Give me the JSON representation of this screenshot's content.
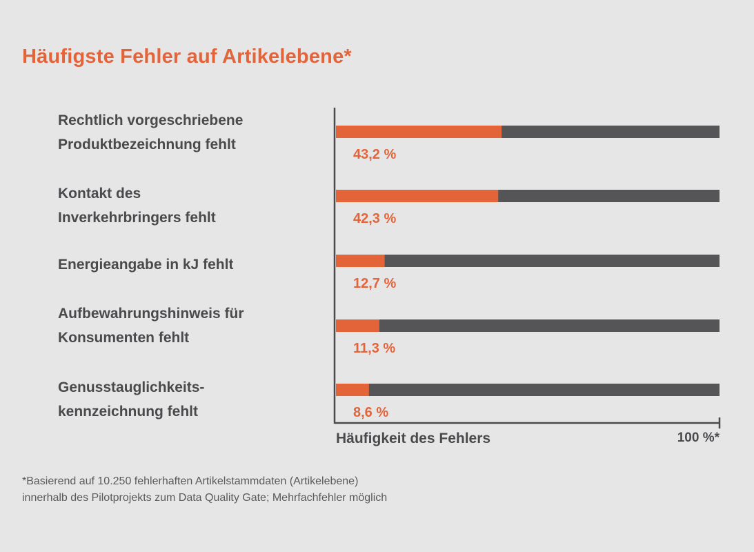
{
  "chart_data": {
    "type": "bar",
    "title": "Häufigste Fehler auf Artikelebene*",
    "categories": [
      "Rechtlich vorgeschriebene\nProduktbezeichnung fehlt",
      "Kontakt des\nInverkehrbringers fehlt",
      "Energieangabe in kJ fehlt",
      "Aufbewahrungshinweis für\nKonsumenten fehlt",
      "Genusstauglichkeits-\nkennzeichnung fehlt"
    ],
    "values": [
      43.2,
      42.3,
      12.7,
      11.3,
      8.6
    ],
    "value_labels": [
      "43,2 %",
      "42,3 %",
      "12,7 %",
      "11,3 %",
      "8,6 %"
    ],
    "xlabel": "Häufigkeit des Fehlers",
    "xmax_label": "100 %*",
    "xlim": [
      0,
      100
    ],
    "orientation": "horizontal",
    "grid": false,
    "colors": {
      "value": "#e4643a",
      "remainder": "#555557",
      "axis": "#4a4a4c",
      "background": "#e6e6e7"
    }
  },
  "footnote": "*Basierend auf 10.250 fehlerhaften Artikelstammdaten (Artikelebene)\n  innerhalb des Pilotprojekts zum Data Quality Gate; Mehrfachfehler möglich"
}
